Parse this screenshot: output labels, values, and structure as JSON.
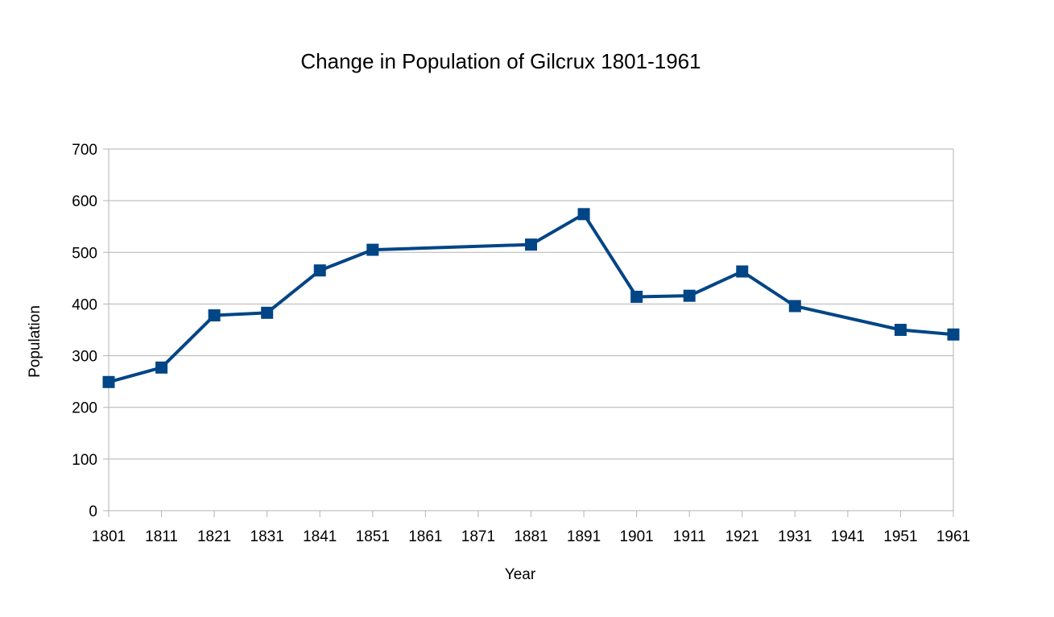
{
  "chart_data": {
    "type": "line",
    "title": "Change in Population of Gilcrux 1801-1961",
    "xlabel": "Year",
    "ylabel": "Population",
    "x_ticks": [
      "1801",
      "1811",
      "1821",
      "1831",
      "1841",
      "1851",
      "1861",
      "1871",
      "1881",
      "1891",
      "1901",
      "1911",
      "1921",
      "1931",
      "1941",
      "1951",
      "1961"
    ],
    "xlim": [
      1801,
      1961
    ],
    "ylim": [
      0,
      700
    ],
    "y_ticks": [
      "0",
      "100",
      "200",
      "300",
      "400",
      "500",
      "600",
      "700"
    ],
    "grid": true,
    "legend": "none",
    "series": [
      {
        "color": "#004586",
        "marker": "square",
        "x": [
          1801,
          1811,
          1821,
          1831,
          1841,
          1851,
          1881,
          1891,
          1901,
          1911,
          1921,
          1931,
          1951,
          1961
        ],
        "values": [
          249,
          277,
          378,
          383,
          465,
          505,
          515,
          574,
          414,
          416,
          463,
          396,
          350,
          341
        ]
      }
    ]
  }
}
